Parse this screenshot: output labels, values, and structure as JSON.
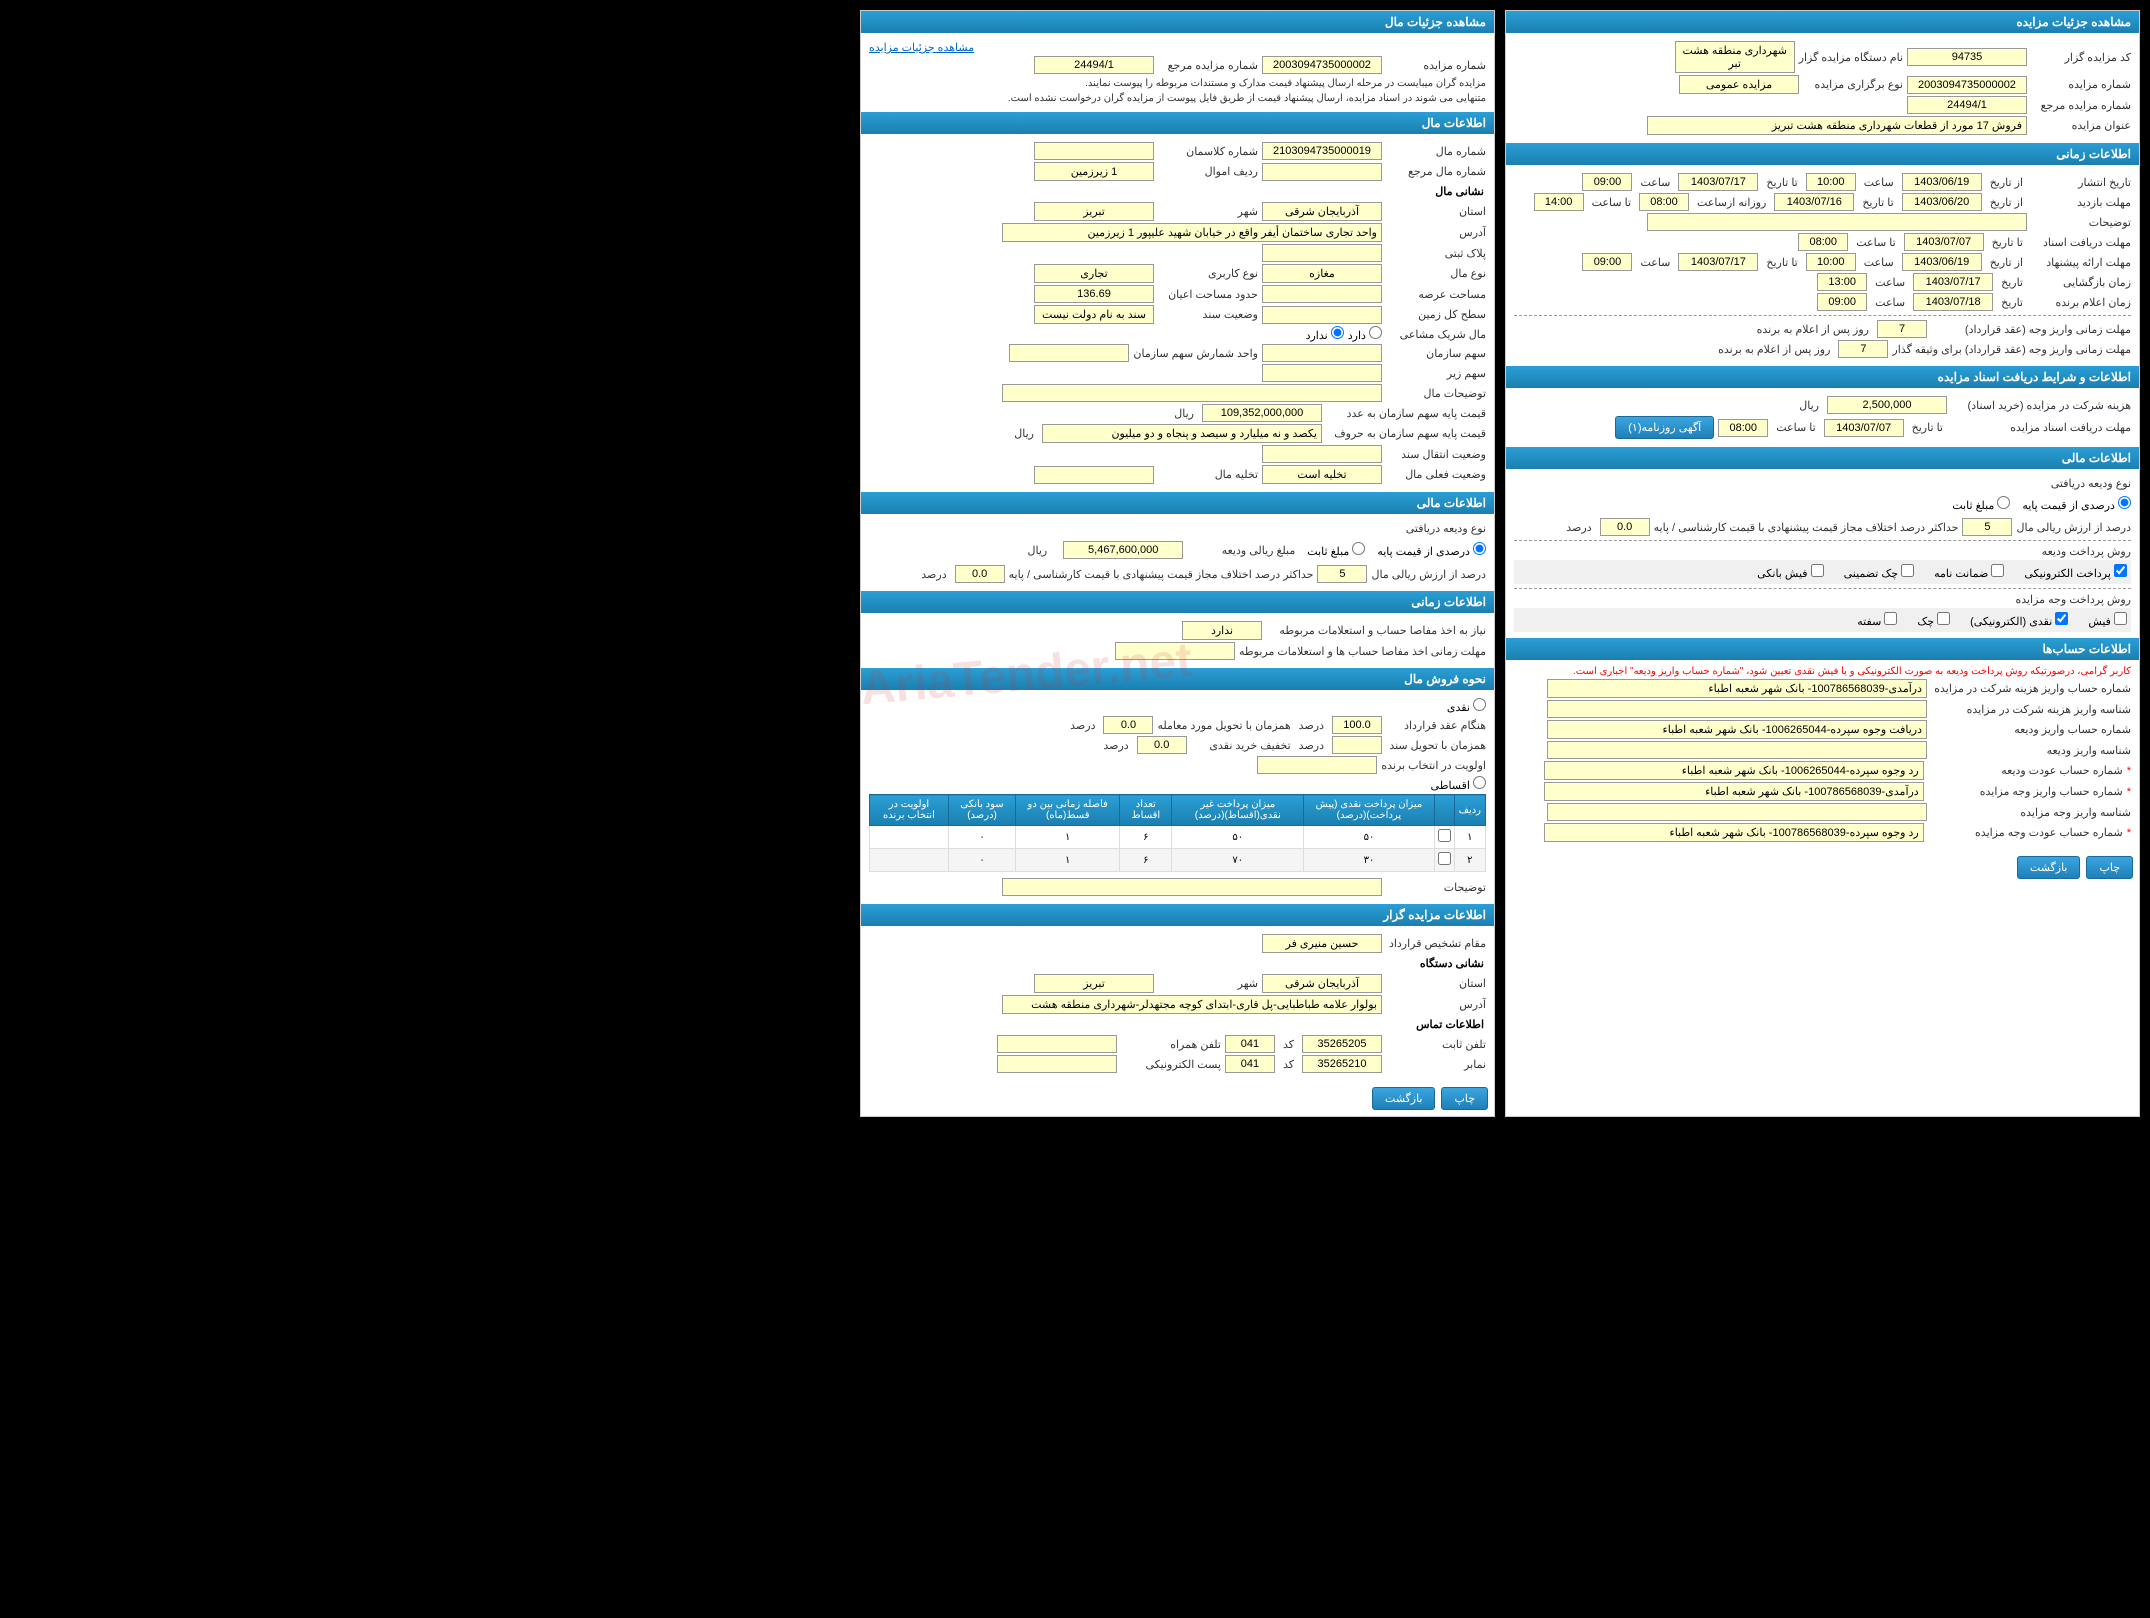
{
  "watermark": "AriaTender.net",
  "right": {
    "auction_details": {
      "header": "مشاهده جزئیات مزایده",
      "code_label": "کد مزایده گزار",
      "code_value": "94735",
      "org_label": "نام دستگاه مزایده گزار",
      "org_value": "شهرداری منطقه هشت تبر",
      "number_label": "شماره مزایده",
      "number_value": "2003094735000002",
      "type_label": "نوع برگزاری مزایده",
      "type_value": "مزایده عمومی",
      "ref_label": "شماره مزایده مرجع",
      "ref_value": "24494/1",
      "title_label": "عنوان مزایده",
      "title_value": "فروش 17 مورد از قطعات شهرداری منطقه  هشت تبریز"
    },
    "time_info": {
      "header": "اطلاعات زمانی",
      "publish_label": "تاریخ انتشار",
      "from_label": "از تاریخ",
      "to_label": "تا تاریخ",
      "hour_label": "ساعت",
      "to_hour_label": "تا ساعت",
      "date_label": "تاریخ",
      "publish_from_date": "1403/06/19",
      "publish_from_hour": "10:00",
      "publish_to_date": "1403/07/17",
      "publish_to_hour": "09:00",
      "visit_label": "مهلت بازدید",
      "visit_from_date": "1403/06/20",
      "visit_from_hour": "",
      "visit_to_date": "1403/07/16",
      "daily_label": "روزانه ازساعت",
      "visit_daily_from": "08:00",
      "visit_to_hour": "14:00",
      "notes_label": "توضیحات",
      "docs_label": "مهلت دریافت اسناد",
      "docs_to_date": "1403/07/07",
      "docs_to_hour": "08:00",
      "offer_label": "مهلت ارائه پیشنهاد",
      "offer_from_date": "1403/06/19",
      "offer_from_hour": "10:00",
      "offer_to_date": "1403/07/17",
      "offer_to_hour": "09:00",
      "open_label": "زمان بازگشایی",
      "open_date": "1403/07/17",
      "open_hour": "13:00",
      "winner_label": "زمان اعلام برنده",
      "winner_date": "1403/07/18",
      "winner_hour": "09:00",
      "pay_deadline_label": "مهلت زمانی واریز وجه (عقد قرارداد)",
      "pay_deadline_value": "7",
      "pay_deadline_suffix": "روز پس از اعلام به برنده",
      "guarantee_label": "مهلت زمانی واریز وجه (عقد قرارداد) برای وثیقه گذار",
      "guarantee_value": "7",
      "guarantee_suffix": "روز پس از اعلام به برنده"
    },
    "docs_conditions": {
      "header": "اطلاعات و شرایط دریافت اسناد مزایده",
      "cost_label": "هزینه شرکت در مزایده (خرید اسناد)",
      "cost_value": "2,500,000",
      "cost_unit": "ریال",
      "deadline_label": "مهلت دریافت اسناد مزایده",
      "deadline_to_date": "1403/07/07",
      "deadline_to_hour": "08:00",
      "newspaper_btn": "آگهی روزنامه(۱)"
    },
    "financial": {
      "header": "اطلاعات مالی",
      "deposit_type_label": "نوع ودیعه دریافتی",
      "percent_base_label": "درصدی از قیمت پایه",
      "fixed_label": "مبلغ ثابت",
      "percent_asset_label": "درصد از ارزش ریالی مال",
      "percent_asset_value": "5",
      "max_diff_label": "حداکثر درصد اختلاف مجاز قیمت پیشنهادی با قیمت کارشناسی / پایه",
      "max_diff_value": "0.0",
      "max_diff_unit": "درصد",
      "deposit_method_label": "روش پرداخت ودیعه",
      "electronic_pay": "پرداخت الکترونیکی",
      "guarantee_letter": "ضمانت نامه",
      "check_guarantee": "چک تضمینی",
      "bank_receipt": "فیش بانکی",
      "auction_pay_label": "روش پرداخت وجه مزایده",
      "cash": "فیش",
      "electronic_cash": "نقدی (الکترونیکی)",
      "check": "چک",
      "promissory": "سفته"
    },
    "accounts": {
      "header": "اطلاعات حساب‌ها",
      "warning": "کاربر گرامی، درصورتیکه روش پرداخت ودیعه به صورت الکترونیکی و یا فیش نقدی تعیین شود، \"شماره حساب واریز ودیعه\" اجباری است.",
      "acc1_label": "شماره حساب واریز هزینه شرکت در مزایده",
      "acc1_value": "درآمدی-100786568039- بانک شهر شعبه اطباء",
      "acc2_label": "شناسه واریز هزینه شرکت در مزایده",
      "acc2_value": "",
      "acc3_label": "شماره حساب واریز ودیعه",
      "acc3_value": "دریافت وجوه سپرده-1006265044- بانک شهر شعبه اطباء",
      "acc4_label": "شناسه واریز ودیعه",
      "acc4_value": "",
      "acc5_label": "شماره حساب عودت ودیعه",
      "acc5_value": "رد وجوه سپرده-1006265044- بانک شهر شعبه اطباء",
      "acc6_label": "شماره حساب واریز وجه مزایده",
      "acc6_value": "درآمدی-100786568039- بانک شهر شعبه اطباء",
      "acc7_label": "شناسه واریز وجه مزایده",
      "acc7_value": "",
      "acc8_label": "شماره حساب عودت وجه مزایده",
      "acc8_value": "رد وجوه سپرده-100786568039- بانک شهر شعبه اطباء"
    },
    "buttons": {
      "print": "چاپ",
      "back": "بازگشت"
    }
  },
  "left": {
    "property_details": {
      "header": "مشاهده جزئیات مال",
      "link": "مشاهده جزئیات مزایده",
      "number_label": "شماره مزایده",
      "number_value": "2003094735000002",
      "ref_label": "شماره مزایده مرجع",
      "ref_value": "24494/1",
      "note1": "مزایده گران میبایست در مرحله ارسال پیشنهاد قیمت مدارک و مستندات مربوطه را پیوست نمایند.",
      "note2": "متنهایی می شوند در اسناد مزایده، ارسال پیشنهاد قیمت از طریق فایل پیوست از مزایده گران درخواست نشده است."
    },
    "property_info": {
      "header": "اطلاعات مال",
      "id_label": "شماره مال",
      "id_value": "2103094735000019",
      "class_label": "شماره کلاسمان",
      "class_value": "",
      "ref_label": "شماره مال مرجع",
      "ref_value": "",
      "row_label": "ردیف اموال",
      "row_value": "1 زیرزمین",
      "address_header": "نشانی مال",
      "province_label": "استان",
      "province_value": "آذربایجان شرقی",
      "city_label": "شهر",
      "city_value": "تبریز",
      "address_label": "آدرس",
      "address_value": "واحد تجاری ساختمان أیفر واقع در خیابان شهید علیپور 1 زیرزمین",
      "plate_label": "پلاک ثبتی",
      "type_label": "نوع مال",
      "type_value": "مغازه",
      "use_label": "نوع کاربری",
      "use_value": "تجاری",
      "land_area_label": "مساحت عرصه",
      "bldg_area_label": "حدود مساحت اعیان",
      "bldg_area_value": "136.69",
      "total_land_label": "سطح کل زمین",
      "doc_status_label": "وضعیت سند",
      "doc_status_value": "سند به نام دولت نیست",
      "shared_label": "مال شریک مشاعی",
      "has_label": "دارد",
      "no_label": "ندارد",
      "org_share_label": "سهم سازمان",
      "org_share_unit_label": "واحد شمارش سهم سازمان",
      "sub_share_label": "سهم زیر",
      "desc_label": "توضیحات مال",
      "base_price_num_label": "قیمت پایه سهم سازمان به عدد",
      "base_price_num_value": "109,352,000,000",
      "base_price_unit": "ریال",
      "base_price_word_label": "قیمت پایه سهم سازمان به حروف",
      "base_price_word_value": "یکصد و نه میلیارد و سیصد و پنجاه و دو میلیون",
      "transfer_label": "وضعیت انتقال سند",
      "current_status_label": "وضعیت فعلی مال",
      "current_status_value": "تخلیه است",
      "vacate_label": "تخلیه مال"
    },
    "financial": {
      "header": "اطلاعات مالی",
      "deposit_type_label": "نوع ودیعه دریافتی",
      "percent_base": "درصدی از قیمت پایه",
      "fixed": "مبلغ ثابت",
      "deposit_amount_label": "مبلغ ریالی ودیعه",
      "deposit_amount_value": "5,467,600,000",
      "deposit_unit": "ریال",
      "percent_asset_label": "درصد از ارزش ریالی مال",
      "percent_asset_value": "5",
      "max_diff_label": "حداکثر درصد اختلاف مجاز قیمت پیشنهادی با قیمت کارشناسی / پایه",
      "max_diff_value": "0.0",
      "max_diff_unit": "درصد"
    },
    "time_info": {
      "header": "اطلاعات زمانی",
      "clearance_label": "نیاز به اخذ مفاصا حساب و استعلامات مربوطه",
      "clearance_value": "ندارد",
      "clearance_time_label": "مهلت زمانی اخذ مفاصا حساب ها و استعلامات مربوطه"
    },
    "sale_method": {
      "header": "نحوه فروش مال",
      "cash_label": "نقدی",
      "contract_pct_label": "هنگام عقد قرارداد",
      "contract_pct_value": "100.0",
      "pct_unit": "درصد",
      "deal_pct_label": "همزمان با تحویل مورد معامله",
      "deal_pct_value": "0.0",
      "doc_pct_label": "همزمان با تحویل سند",
      "doc_pct_value": "",
      "discount_label": "تخفیف خرید نقدی",
      "discount_value": "0.0",
      "winner_select_label": "اولویت در انتخاب برنده",
      "winner_select_value": "",
      "installment_label": "اقساطی",
      "table": {
        "headers": [
          "ردیف",
          "",
          "میزان پرداخت نقدی (پیش پرداخت)(درصد)",
          "میزان پرداخت غیر نقدی(اقساط)(درصد)",
          "تعداد اقساط",
          "فاصله زمانی بین دو قسط(ماه)",
          "سود بانکی (درصد)",
          "اولویت در انتخاب برنده"
        ],
        "rows": [
          [
            "۱",
            "",
            "۵۰",
            "۵۰",
            "۶",
            "۱",
            "۰",
            ""
          ],
          [
            "۲",
            "",
            "۳۰",
            "۷۰",
            "۶",
            "۱",
            "۰",
            ""
          ]
        ]
      },
      "notes_label": "توضیحات"
    },
    "auctioneer": {
      "header": "اطلاعات مزایده گزار",
      "contract_auth_label": "مقام تشخیص قرارداد",
      "contract_auth_value": "حسین منیری فر",
      "org_address_header": "نشانی دستگاه",
      "province_label": "استان",
      "province_value": "آذربایجان شرقی",
      "city_label": "شهر",
      "city_value": "تبریز",
      "address_label": "آدرس",
      "address_value": "بولوار علامه طباطبایی-پل قاری-ابتدای کوچه مجتهدلر-شهرداری منطقه هشت",
      "contact_header": "اطلاعات تماس",
      "phone_label": "تلفن ثابت",
      "phone_value": "35265205",
      "code_label": "کد",
      "phone_code": "041",
      "mobile_label": "تلفن همراه",
      "fax_label": "نمابر",
      "fax_value": "35265210",
      "fax_code": "041",
      "email_label": "پست الکترونیکی"
    },
    "buttons": {
      "print": "چاپ",
      "back": "بازگشت"
    }
  }
}
